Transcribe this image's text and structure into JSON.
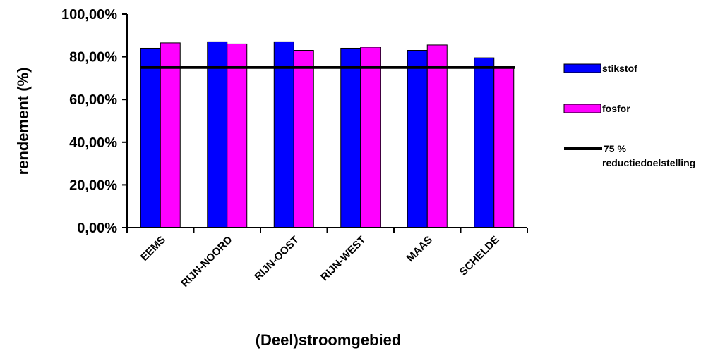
{
  "chart_data": {
    "type": "bar",
    "categories": [
      "EEMS",
      "RIJN-NOORD",
      "RIJN-OOST",
      "RIJN-WEST",
      "MAAS",
      "SCHELDE"
    ],
    "series": [
      {
        "name": "stikstof",
        "color": "#0000ff",
        "values": [
          84,
          87,
          87,
          84,
          83,
          79.5
        ]
      },
      {
        "name": "fosfor",
        "color": "#ff00ff",
        "values": [
          86.5,
          86,
          83,
          84.5,
          85.5,
          75.5
        ]
      }
    ],
    "reference_line": {
      "name": "75 % reductiedoelstelling",
      "value": 75,
      "color": "#000000"
    },
    "title": "",
    "xlabel": "(Deel)stroomgebied",
    "ylabel": "rendement (%)",
    "ylim": [
      0,
      100
    ],
    "yticks": [
      0,
      20,
      40,
      60,
      80,
      100
    ],
    "ytick_labels": [
      "0,00%",
      "20,00%",
      "40,00%",
      "60,00%",
      "80,00%",
      "100,00%"
    ],
    "legend": {
      "placement": "right",
      "entries": [
        {
          "label": "stikstof",
          "kind": "bar",
          "color": "#0000ff"
        },
        {
          "label": "fosfor",
          "kind": "bar",
          "color": "#ff00ff"
        },
        {
          "label_lines": [
            "75 %",
            "reductiedoelstelling"
          ],
          "kind": "line",
          "color": "#000000"
        }
      ]
    },
    "grid": false
  }
}
